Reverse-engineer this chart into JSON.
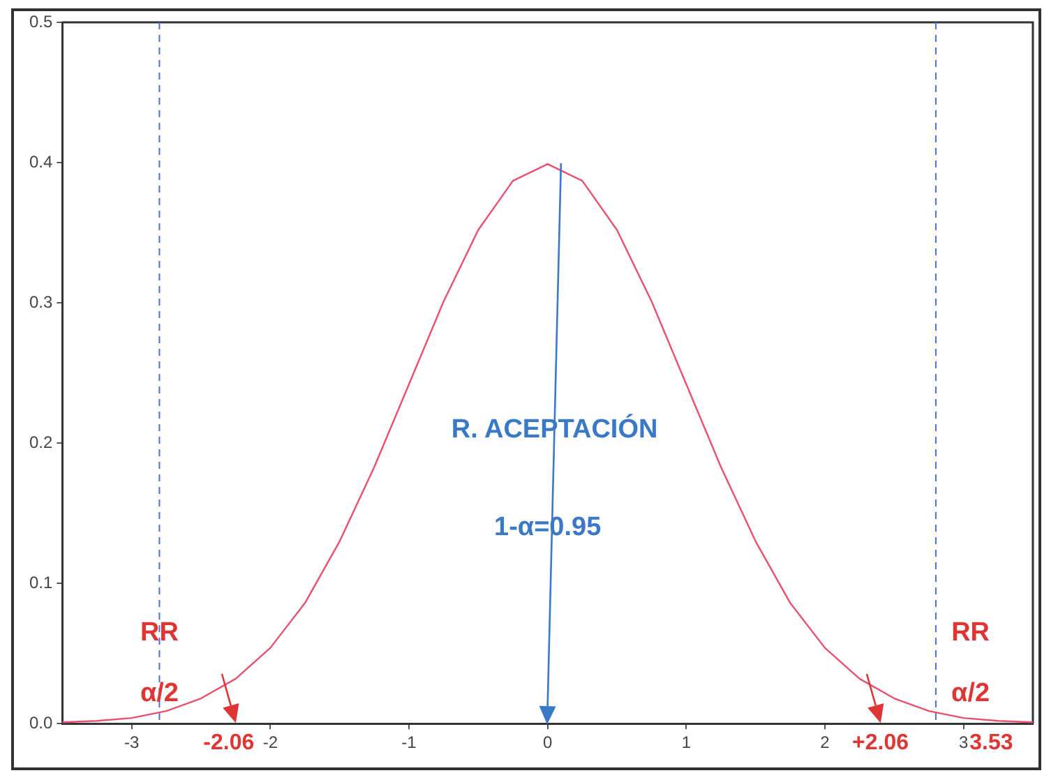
{
  "chart_data": {
    "type": "line",
    "x": [
      -3.5,
      -3.25,
      -3,
      -2.75,
      -2.5,
      -2.25,
      -2,
      -1.75,
      -1.5,
      -1.25,
      -1,
      -0.75,
      -0.5,
      -0.25,
      0,
      0.25,
      0.5,
      0.75,
      1,
      1.25,
      1.5,
      1.75,
      2,
      2.25,
      2.5,
      2.75,
      3,
      3.25,
      3.5
    ],
    "series": [
      {
        "color": "#e8506e",
        "values": [
          0.001,
          0.002,
          0.004,
          0.009,
          0.018,
          0.032,
          0.054,
          0.086,
          0.13,
          0.183,
          0.242,
          0.301,
          0.352,
          0.387,
          0.399,
          0.387,
          0.352,
          0.301,
          0.242,
          0.183,
          0.13,
          0.086,
          0.054,
          0.032,
          0.018,
          0.009,
          0.004,
          0.002,
          0.001
        ]
      }
    ],
    "xlim": [
      -3.5,
      3.5
    ],
    "xticks": [
      -3,
      -2,
      -1,
      0,
      1,
      2,
      3
    ],
    "ylim": [
      0,
      0.5
    ],
    "yticks": [
      {
        "value": 0,
        "label": "0.0"
      },
      {
        "value": 0.1,
        "label": "0.1"
      },
      {
        "value": 0.2,
        "label": "0.2"
      },
      {
        "value": 0.3,
        "label": "0.3"
      },
      {
        "value": 0.4,
        "label": "0.4"
      },
      {
        "value": 0.5,
        "label": "0.5"
      }
    ],
    "grid": false,
    "legend": false,
    "marker": "none",
    "line_style": "solid",
    "ref_lines": [
      {
        "axis": "x",
        "value": -2.8,
        "color": "#4a6fd8",
        "line_style": "dashed"
      },
      {
        "axis": "x",
        "value": 2.8,
        "color": "#4a6fd8",
        "line_style": "dashed"
      }
    ],
    "annotations": [
      {
        "text": "RR",
        "x": -2.8,
        "y": 0.055
      },
      {
        "text": "α/2",
        "x": -2.8,
        "y": 0.012
      },
      "RR",
      "α/2",
      "-2.06",
      "+2.06",
      "3.53",
      "R. ACEPTACIÓN",
      "1-α=0.95"
    ]
  }
}
